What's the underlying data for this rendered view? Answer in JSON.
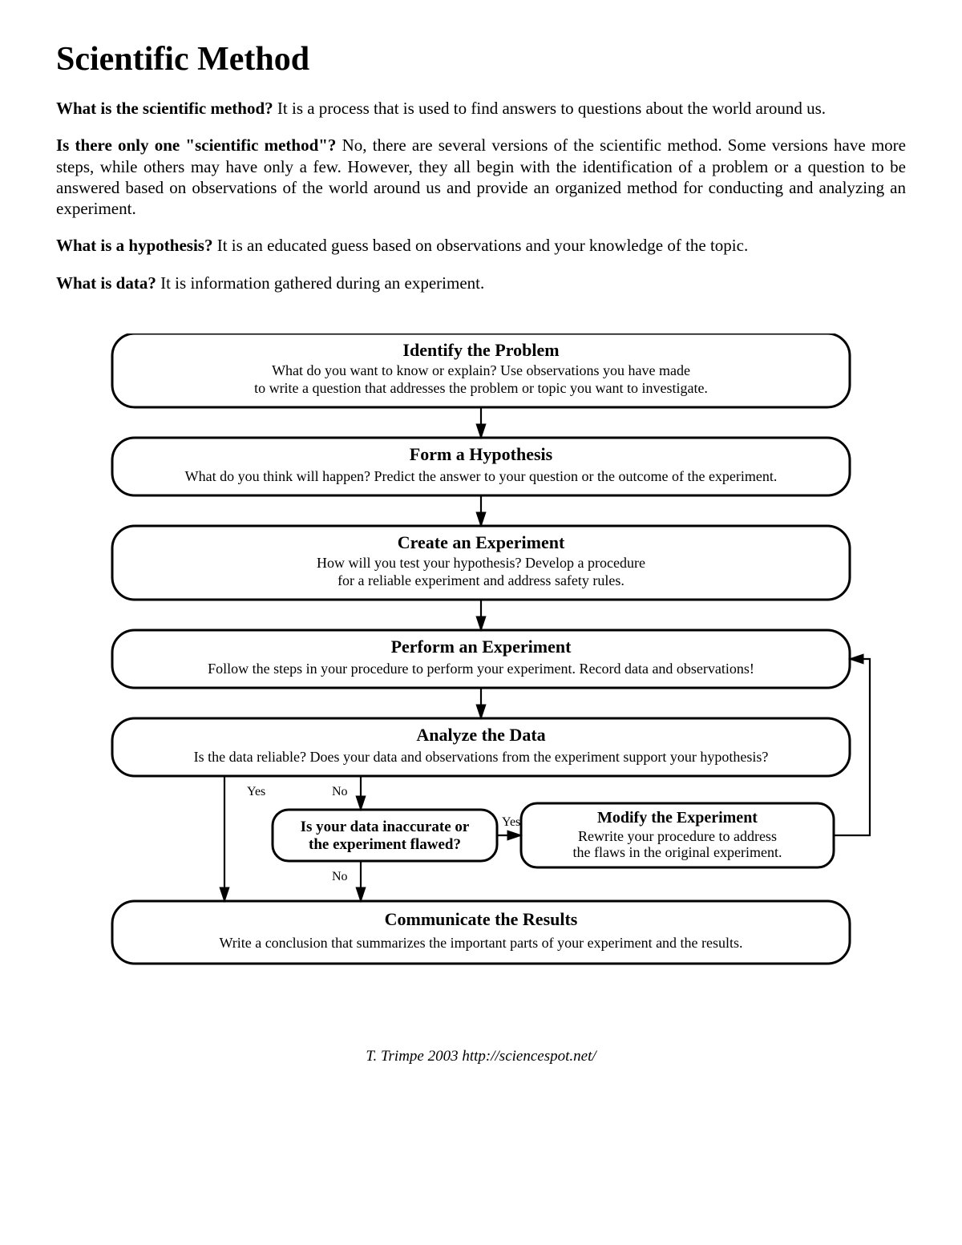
{
  "title": "Scientific Method",
  "paragraphs": [
    {
      "q": "What is the scientific method?",
      "a": " It is a process that is used to find answers to questions about the world around us."
    },
    {
      "q": "Is there only one \"scientific method\"?",
      "a": " No, there are several versions of the scientific method. Some versions have more steps, while others may have only a few. However, they all begin with the identification of a problem or a question to be answered based on observations of the world around us and provide an organized method for conducting and analyzing an experiment."
    },
    {
      "q": "What is a hypothesis?",
      "a": " It is an educated guess based on observations and your knowledge of the topic."
    },
    {
      "q": "What is data?",
      "a": " It is information gathered during an experiment."
    }
  ],
  "footer": "T. Trimpe 2003   http://sciencespot.net/",
  "flow": {
    "type": "flowchart",
    "background_color": "#ffffff",
    "stroke_color": "#000000",
    "node_stroke_width": 3,
    "arrow_stroke_width": 2.2,
    "title_fontsize": 22,
    "body_fontsize": 18,
    "label_fontsize": 16,
    "corner_radius": 28,
    "small_corner_radius": 20,
    "nodes": {
      "identify": {
        "title": "Identify the Problem",
        "lines": [
          "What do you want to know or explain?  Use observations you have made",
          "to write a question that addresses the problem or topic you want to investigate."
        ]
      },
      "hypothesis": {
        "title": "Form a Hypothesis",
        "lines": [
          "What do you think will happen? Predict the answer to your question or the outcome of the experiment."
        ]
      },
      "create": {
        "title": "Create an Experiment",
        "lines": [
          "How will you test your hypothesis? Develop a procedure",
          "for a reliable experiment and address safety rules."
        ]
      },
      "perform": {
        "title": "Perform an Experiment",
        "lines": [
          "Follow the steps in your procedure to perform your experiment. Record data and observations!"
        ]
      },
      "analyze": {
        "title": "Analyze the Data",
        "lines": [
          "Is the data reliable? Does your data and observations from the experiment support your hypothesis?"
        ]
      },
      "decision": {
        "title": "Is your data inaccurate or",
        "title2": "the experiment flawed?"
      },
      "modify": {
        "title": "Modify the Experiment",
        "lines": [
          "Rewrite your procedure to address",
          "the flaws in the original experiment."
        ]
      },
      "communicate": {
        "title": "Communicate the Results",
        "lines": [
          "Write a conclusion that summarizes the important parts of your experiment and the results."
        ]
      }
    },
    "labels": {
      "yes1": "Yes",
      "no1": "No",
      "yes2": "Yes",
      "no2": "No"
    }
  }
}
